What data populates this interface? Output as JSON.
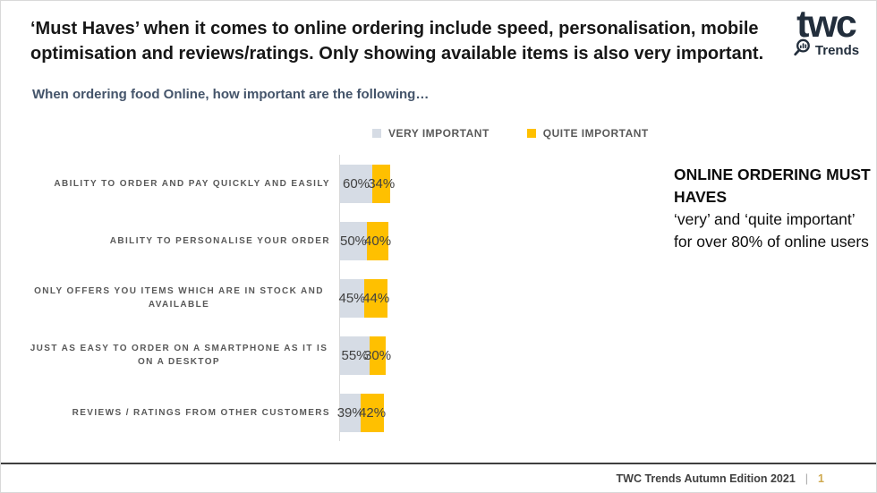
{
  "slide": {
    "title": "‘Must Haves’ when it comes to online ordering include speed, personalisation, mobile optimisation and reviews/ratings. Only showing available items is also very important.",
    "subtitle": "When ordering food Online, how important are the following…",
    "logo": {
      "brand": "twc",
      "sub_label": "Trends",
      "icon": "magnifier-bar-chart-icon",
      "color": "#222e3c"
    },
    "annotation": {
      "heading": "ONLINE ORDERING MUST HAVES",
      "body": "‘very’ and ‘quite important’ for over 80% of online users"
    },
    "footer": {
      "text": "TWC Trends Autumn Edition 2021",
      "separator": "|",
      "page_number": "1"
    }
  },
  "chart_data": {
    "type": "bar",
    "orientation": "horizontal-stacked",
    "title": "When ordering food Online, how important are the following…",
    "categories": [
      "ABILITY TO ORDER AND PAY QUICKLY AND EASILY",
      "ABILITY TO PERSONALISE YOUR ORDER",
      "ONLY OFFERS YOU ITEMS WHICH ARE IN STOCK AND AVAILABLE",
      "JUST AS EASY TO ORDER ON A SMARTPHONE AS IT IS ON A DESKTOP",
      "REVIEWS / RATINGS FROM OTHER CUSTOMERS"
    ],
    "series": [
      {
        "name": "VERY IMPORTANT",
        "color": "#D6DCE5",
        "values": [
          60,
          50,
          45,
          55,
          39
        ]
      },
      {
        "name": "QUITE IMPORTANT",
        "color": "#FFC000",
        "values": [
          34,
          40,
          44,
          30,
          42
        ]
      }
    ],
    "value_suffix": "%",
    "xlim": [
      0,
      100
    ],
    "grid": false,
    "legend_position": "top",
    "data_labels": true
  }
}
